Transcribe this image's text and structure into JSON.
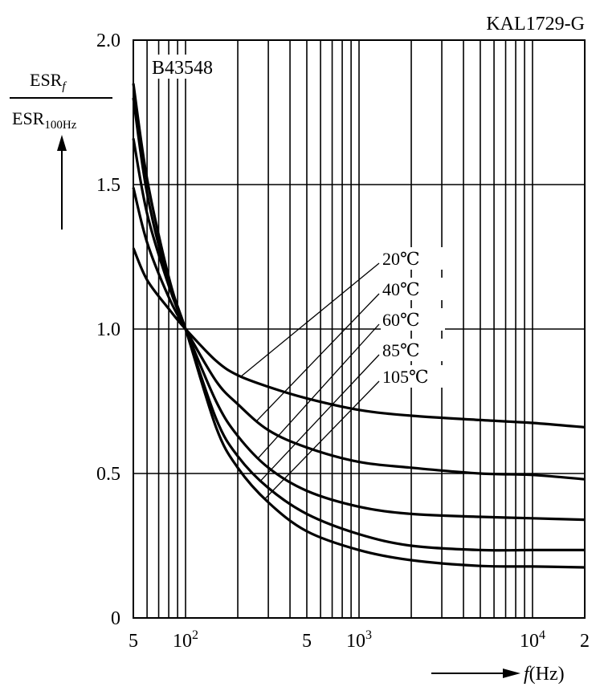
{
  "chart_data": {
    "type": "line",
    "code": "KAL1729-G",
    "model": "B43548",
    "y_label": {
      "numerator": "ESR",
      "numerator_sub": "f",
      "denominator": "ESR",
      "denominator_sub": "100Hz"
    },
    "x_label": {
      "variable": "f",
      "unit": "(Hz)"
    },
    "x_scale": "log",
    "xlim": [
      50,
      20000
    ],
    "ylim": [
      0,
      2.0
    ],
    "y_ticks": [
      "0",
      "0.5",
      "1.0",
      "1.5",
      "2.0"
    ],
    "x_ticks": [
      {
        "value": 50,
        "label": "5"
      },
      {
        "value": 100,
        "label": "10",
        "sup": "2"
      },
      {
        "value": 500,
        "label": "5"
      },
      {
        "value": 1000,
        "label": "10",
        "sup": "3"
      },
      {
        "value": 10000,
        "label": "10",
        "sup": "4"
      },
      {
        "value": 20000,
        "label": "2"
      }
    ],
    "grid": true,
    "series": [
      {
        "name": "20℃",
        "x": [
          50,
          60,
          80,
          100,
          150,
          200,
          300,
          500,
          1000,
          2000,
          5000,
          10000,
          20000
        ],
        "y": [
          1.28,
          1.17,
          1.07,
          1.0,
          0.89,
          0.84,
          0.8,
          0.76,
          0.72,
          0.7,
          0.685,
          0.675,
          0.66
        ]
      },
      {
        "name": "40℃",
        "x": [
          50,
          60,
          80,
          100,
          150,
          200,
          300,
          500,
          1000,
          2000,
          5000,
          10000,
          20000
        ],
        "y": [
          1.49,
          1.3,
          1.11,
          1.0,
          0.82,
          0.74,
          0.65,
          0.59,
          0.54,
          0.52,
          0.5,
          0.495,
          0.48
        ]
      },
      {
        "name": "60℃",
        "x": [
          50,
          60,
          80,
          100,
          150,
          200,
          300,
          500,
          1000,
          2000,
          5000,
          10000,
          20000
        ],
        "y": [
          1.66,
          1.4,
          1.15,
          1.0,
          0.75,
          0.63,
          0.52,
          0.44,
          0.385,
          0.36,
          0.35,
          0.345,
          0.34
        ]
      },
      {
        "name": "85℃",
        "x": [
          50,
          60,
          80,
          100,
          150,
          200,
          300,
          500,
          1000,
          2000,
          5000,
          10000,
          20000
        ],
        "y": [
          1.85,
          1.52,
          1.18,
          1.0,
          0.69,
          0.56,
          0.45,
          0.36,
          0.29,
          0.25,
          0.235,
          0.235,
          0.235
        ]
      },
      {
        "name": "105℃",
        "x": [
          50,
          60,
          80,
          100,
          150,
          200,
          300,
          500,
          1000,
          2000,
          5000,
          10000,
          20000
        ],
        "y": [
          1.8,
          1.47,
          1.16,
          1.0,
          0.66,
          0.52,
          0.4,
          0.3,
          0.235,
          0.2,
          0.18,
          0.178,
          0.175
        ]
      }
    ]
  }
}
